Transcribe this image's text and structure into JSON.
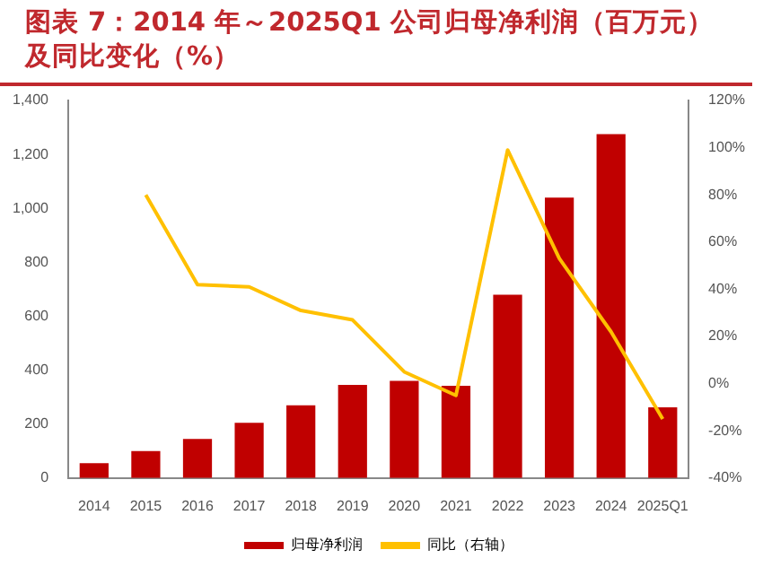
{
  "chart_data": {
    "type": "bar",
    "title": "图表 7：2014 年～2025Q1 公司归母净利润（百万元）及同比变化（%）",
    "categories": [
      "2014",
      "2015",
      "2016",
      "2017",
      "2018",
      "2019",
      "2020",
      "2021",
      "2022",
      "2023",
      "2024",
      "2025Q1"
    ],
    "series": [
      {
        "name": "归母净利润",
        "color": "#c00000",
        "values": [
          55,
          100,
          145,
          205,
          270,
          345,
          360,
          342,
          680,
          1040,
          1275,
          262
        ]
      },
      {
        "name": "同比（右轴）",
        "type": "line",
        "axis": "y2",
        "color": "#ffc000",
        "values": [
          null,
          80,
          42,
          41,
          31,
          27,
          5,
          -5,
          99,
          53,
          22,
          -15
        ]
      }
    ],
    "ylim": [
      0,
      1400
    ],
    "yticks": [
      0,
      {
        "value": 200,
        "label": "200"
      },
      400,
      600,
      800,
      {
        "value": 1000,
        "label": "1,000"
      },
      {
        "value": 1200,
        "label": "1,200"
      },
      {
        "value": 1400,
        "label": "1,400"
      }
    ],
    "y2lim": [
      -40,
      120
    ],
    "y2ticks": [
      {
        "value": -40,
        "label": "-40%"
      },
      {
        "value": -20,
        "label": "-20%"
      },
      {
        "value": 0,
        "label": "0%"
      },
      {
        "value": 20,
        "label": "20%"
      },
      {
        "value": 40,
        "label": "40%"
      },
      {
        "value": 60,
        "label": "60%"
      },
      {
        "value": 80,
        "label": "80%"
      },
      {
        "value": 100,
        "label": "100%"
      },
      {
        "value": 120,
        "label": "120%"
      }
    ],
    "grid": false,
    "legend": "bottom",
    "marker": "none"
  }
}
